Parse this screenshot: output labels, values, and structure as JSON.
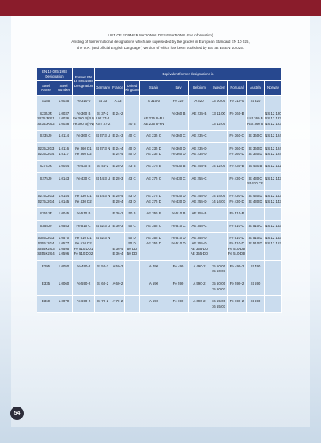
{
  "header": {
    "title": "LIST OF FORMER NATIONAL DESIGNATIONS (For information)",
    "intro_1": "A listing of former national designations which are superseded by the grades in European Standard EN 10 025,",
    "intro_2": "the U.K. (and official English Language ) version of which has been published by BSI as BS EN 10 025."
  },
  "table": {
    "header": {
      "designation": "EN 10 025:1993 Designation",
      "former": "Former EN 10 025:1990 Designation",
      "equivalent": "Equivalent former designations in",
      "sub": [
        "Steel Name",
        "Steel Number"
      ],
      "countries": [
        "Germany",
        "France",
        "United Kingdom",
        "Spain",
        "Italy",
        "Belgium",
        "Sweden",
        "Portugal",
        "Austria",
        "Norway"
      ]
    },
    "groups": [
      [
        [
          "S185"
        ],
        [
          "1.0035"
        ],
        [
          "Fe 310-0"
        ],
        [
          "St 33"
        ],
        [
          "A 33"
        ],
        null,
        [
          "A 310-0"
        ],
        [
          "Fe 320"
        ],
        [
          "A 320"
        ],
        [
          "13 00-00"
        ],
        [
          "Fe 310-0"
        ],
        [
          "St 320"
        ],
        null
      ],
      [
        [
          "S235JR",
          "S235JRG1",
          "S235JRG2"
        ],
        [
          "1.0037",
          "1.0036",
          "1.0038"
        ],
        [
          "Fe 360 B",
          "Fe 360 B(FU)",
          "Fe 360 B(FN)"
        ],
        [
          "St 37-2",
          "Ust 37-2",
          "RST 37-2"
        ],
        [
          "E 24-2"
        ],
        [
          null,
          null,
          "40 B"
        ],
        [
          null,
          "AE 235 B-FU",
          "AE 235 B-FN"
        ],
        [
          "Fe 360 B"
        ],
        [
          "AE 235-B"
        ],
        [
          "13 11-00",
          null,
          "13 12-00"
        ],
        [
          "Fe 360-B"
        ],
        [
          null,
          "Ust 360 B",
          "RSt 360 B"
        ],
        [
          "NS 12 120",
          "NS 12 122",
          "NS 12 123"
        ]
      ],
      [
        [
          "S235J0"
        ],
        [
          "1.0114"
        ],
        [
          "Fe 360 C"
        ],
        [
          "St 37-3 U"
        ],
        [
          "E 24-3"
        ],
        [
          "40 C"
        ],
        [
          "AE 235 C"
        ],
        [
          "Fe 360 C"
        ],
        [
          "AE 235-C"
        ],
        null,
        [
          "Fe 360-C"
        ],
        [
          "St 360 C"
        ],
        [
          "NS 12 124"
        ]
      ],
      [
        [
          "S235J2G3",
          "S235J2G4"
        ],
        [
          "1.0116",
          "1.0117"
        ],
        [
          "Fe 360 D1",
          "Fe 360 D2"
        ],
        [
          "St 37-3 N"
        ],
        [
          "E 24-4",
          "E 24-4"
        ],
        [
          "40 D",
          "40 D"
        ],
        [
          "AE 235 D",
          "AE 235 D"
        ],
        [
          "Fe 360 D",
          "Fe 360 D"
        ],
        [
          "AE 235-D",
          "AE 235-D"
        ],
        null,
        [
          "Fe 360-D",
          "Fe 360-D"
        ],
        [
          "St 360 D",
          "St 360 D"
        ],
        [
          "NS 12 124",
          "NS 12 124"
        ]
      ],
      [
        [
          "S275JR"
        ],
        [
          "1.0044"
        ],
        [
          "Fe 430 B"
        ],
        [
          "St 44-2"
        ],
        [
          "E 28-2"
        ],
        [
          "43 B"
        ],
        [
          "AE 275 B"
        ],
        [
          "Fe 430 B"
        ],
        [
          "AE 255-B"
        ],
        [
          "14 12-00"
        ],
        [
          "Fe 430-B"
        ],
        [
          "St 430 B"
        ],
        [
          "NS 12 142"
        ]
      ],
      [
        [
          "S275J0"
        ],
        [
          "1.0143"
        ],
        [
          "Fe 430 C"
        ],
        [
          "St 44-3 U"
        ],
        [
          "E 28-3"
        ],
        [
          "43 C"
        ],
        [
          "AE 275 C"
        ],
        [
          "Fe 430 C"
        ],
        [
          "AE 255-C"
        ],
        null,
        [
          "Fe 430-C"
        ],
        [
          "St 430 C",
          "St 430 CE"
        ],
        [
          "NS 12 143"
        ]
      ],
      [
        [
          "S275J2G3",
          "S275J2G4"
        ],
        [
          "1.0144",
          "1.0145"
        ],
        [
          "Fe 430 D1",
          "Fe 430 D2"
        ],
        [
          "St 44-3 N"
        ],
        [
          "E 28-4",
          "E 28-4"
        ],
        [
          "43 D",
          "43 D"
        ],
        [
          "AE 275 D",
          "AE 275 D"
        ],
        [
          "Fe 430 D",
          "Fe 430 D"
        ],
        [
          "AE 255-D",
          "AE 255-D"
        ],
        [
          "14 14-00",
          "14 14-01"
        ],
        [
          "Fe 430-D",
          "Fe 430-D"
        ],
        [
          "St 430 D",
          "St 430 D"
        ],
        [
          "NS 12 143",
          "NS 12 143"
        ]
      ],
      [
        [
          "S355JR"
        ],
        [
          "1.0045"
        ],
        [
          "Fe 510 B"
        ],
        null,
        [
          "E 36-2"
        ],
        [
          "50 B"
        ],
        [
          "AE 355 B"
        ],
        [
          "Fe 510 B"
        ],
        [
          "AE 355-B"
        ],
        null,
        [
          "Fe 510-B"
        ],
        null,
        null
      ],
      [
        [
          "S355J0"
        ],
        [
          "1.0553"
        ],
        [
          "Fe 510 C"
        ],
        [
          "St 52-3 U"
        ],
        [
          "E 36-3"
        ],
        [
          "50 C"
        ],
        [
          "AE 355 C"
        ],
        [
          "Fe 510 C"
        ],
        [
          "AE 355-C"
        ],
        null,
        [
          "Fe 510-C"
        ],
        [
          "St 510 C"
        ],
        [
          "NS 12 153"
        ]
      ],
      [
        [
          "S355J2G3",
          "S355J2G4",
          "S355K2G3",
          "S355K2G4"
        ],
        [
          "1.0570",
          "1.0577",
          "1.0595",
          "1.0596"
        ],
        [
          "Fe 510 D1",
          "Fe 510 D2",
          "Fe 510 DD1",
          "Fe 510 DD2"
        ],
        [
          "St 52-3 N"
        ],
        [
          null,
          null,
          "E 36-4",
          "E 36-4"
        ],
        [
          "50 D",
          "50 D",
          "50 DD",
          "50 DD"
        ],
        [
          "AE 355 D",
          "AE 355 D"
        ],
        [
          "Fe 510 D",
          "Fe 510 D"
        ],
        [
          "AE 355-D",
          "AE 355-D",
          "AE 355-DD",
          "AE 355-DD"
        ],
        null,
        [
          "Fe 510-D",
          "Fe 510-D",
          "Fe 510-DD",
          "Fe 510-DD"
        ],
        [
          "St 510 D",
          "St 510 D"
        ],
        [
          "NS 12 153",
          "NS 12 153"
        ]
      ],
      [
        [
          "E295"
        ],
        [
          "1.0050"
        ],
        [
          "Fe 490-2"
        ],
        [
          "St 50-2"
        ],
        [
          "A 50-2"
        ],
        null,
        [
          "A 490"
        ],
        [
          "Fe 490"
        ],
        [
          "A 490-2"
        ],
        [
          "15 50-00",
          "15 50-01"
        ],
        [
          "Fe 490-2"
        ],
        [
          "St 490"
        ],
        null
      ],
      [
        [
          "E335"
        ],
        [
          "1.0060"
        ],
        [
          "Fe 590-2"
        ],
        [
          "St 60-2"
        ],
        [
          "A 60-2"
        ],
        null,
        [
          "A 590"
        ],
        [
          "Fe 590"
        ],
        [
          "A 590-2"
        ],
        [
          "15 60-00",
          "15 60-01"
        ],
        [
          "Fe 590-2"
        ],
        [
          "St 590"
        ],
        null
      ],
      [
        [
          "E360"
        ],
        [
          "1.0070"
        ],
        [
          "Fe 690-2"
        ],
        [
          "St 70-2"
        ],
        [
          "A 70-2"
        ],
        null,
        [
          "A 690"
        ],
        [
          "Fe 690"
        ],
        [
          "A 690-2"
        ],
        [
          "16 55-00",
          "16 55-01"
        ],
        [
          "Fe 690-2"
        ],
        [
          "St 690"
        ],
        null
      ]
    ]
  },
  "page_number": "54"
}
